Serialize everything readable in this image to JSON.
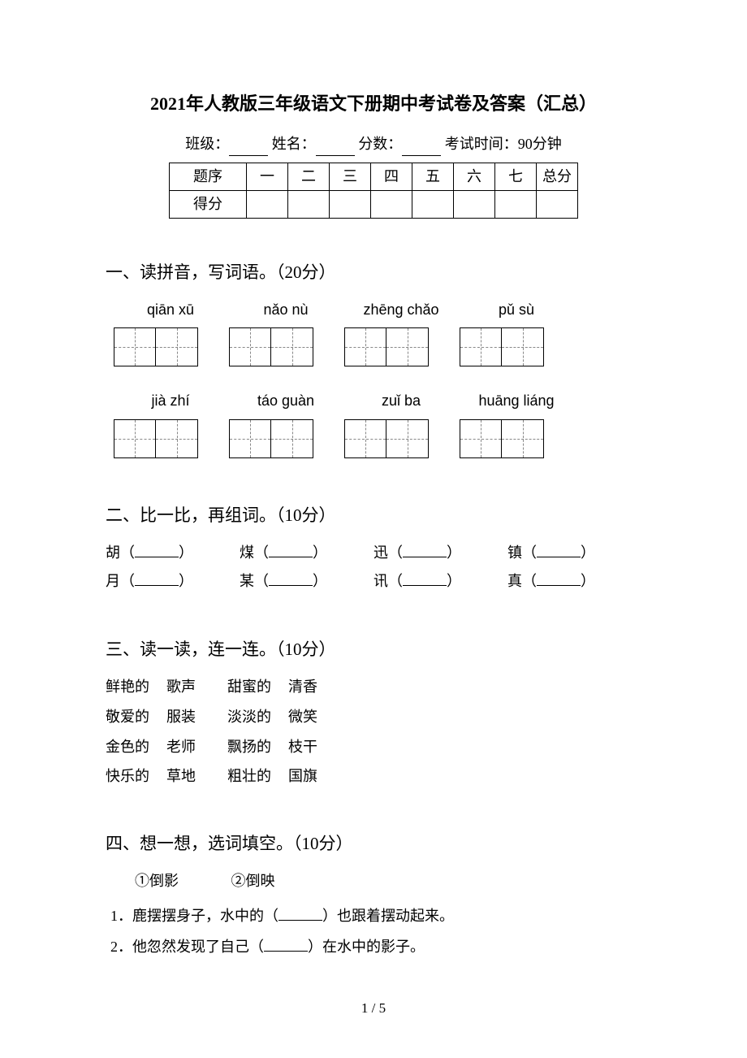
{
  "title": "2021年人教版三年级语文下册期中考试卷及答案（汇总）",
  "meta": {
    "class_label": "班级：",
    "name_label": "姓名：",
    "score_label": "分数：",
    "time_label": "考试时间：90分钟"
  },
  "score_table": {
    "row1_label": "题序",
    "row2_label": "得分",
    "cols": [
      "一",
      "二",
      "三",
      "四",
      "五",
      "六",
      "七",
      "总分"
    ]
  },
  "section1": {
    "heading": "一、读拼音，写词语。（20分）",
    "row1_pinyin": [
      "qiān xū",
      "nǎo nù",
      "zhēng chǎo",
      "pǔ sù"
    ],
    "row2_pinyin": [
      "jià zhí",
      "táo guàn",
      "zuǐ ba",
      "huāng liáng"
    ]
  },
  "section2": {
    "heading": "二、比一比，再组词。（10分）",
    "pairs": [
      [
        "胡",
        "煤",
        "迅",
        "镇"
      ],
      [
        "月",
        "某",
        "讯",
        "真"
      ]
    ]
  },
  "section3": {
    "heading": "三、读一读，连一连。（10分）",
    "rows": [
      [
        "鲜艳的",
        "歌声",
        "甜蜜的",
        "清香"
      ],
      [
        "敬爱的",
        "服装",
        "淡淡的",
        "微笑"
      ],
      [
        "金色的",
        "老师",
        "飘扬的",
        "枝干"
      ],
      [
        "快乐的",
        "草地",
        "粗壮的",
        "国旗"
      ]
    ]
  },
  "section4": {
    "heading": "四、想一想，选词填空。（10分）",
    "options": [
      "①倒影",
      "②倒映"
    ],
    "q1_a": "1．鹿摆摆身子，水中的（",
    "q1_b": "）也跟着摆动起来。",
    "q2_a": "2．他忽然发现了自己（",
    "q2_b": "）在水中的影子。"
  },
  "page_num": "1 / 5"
}
